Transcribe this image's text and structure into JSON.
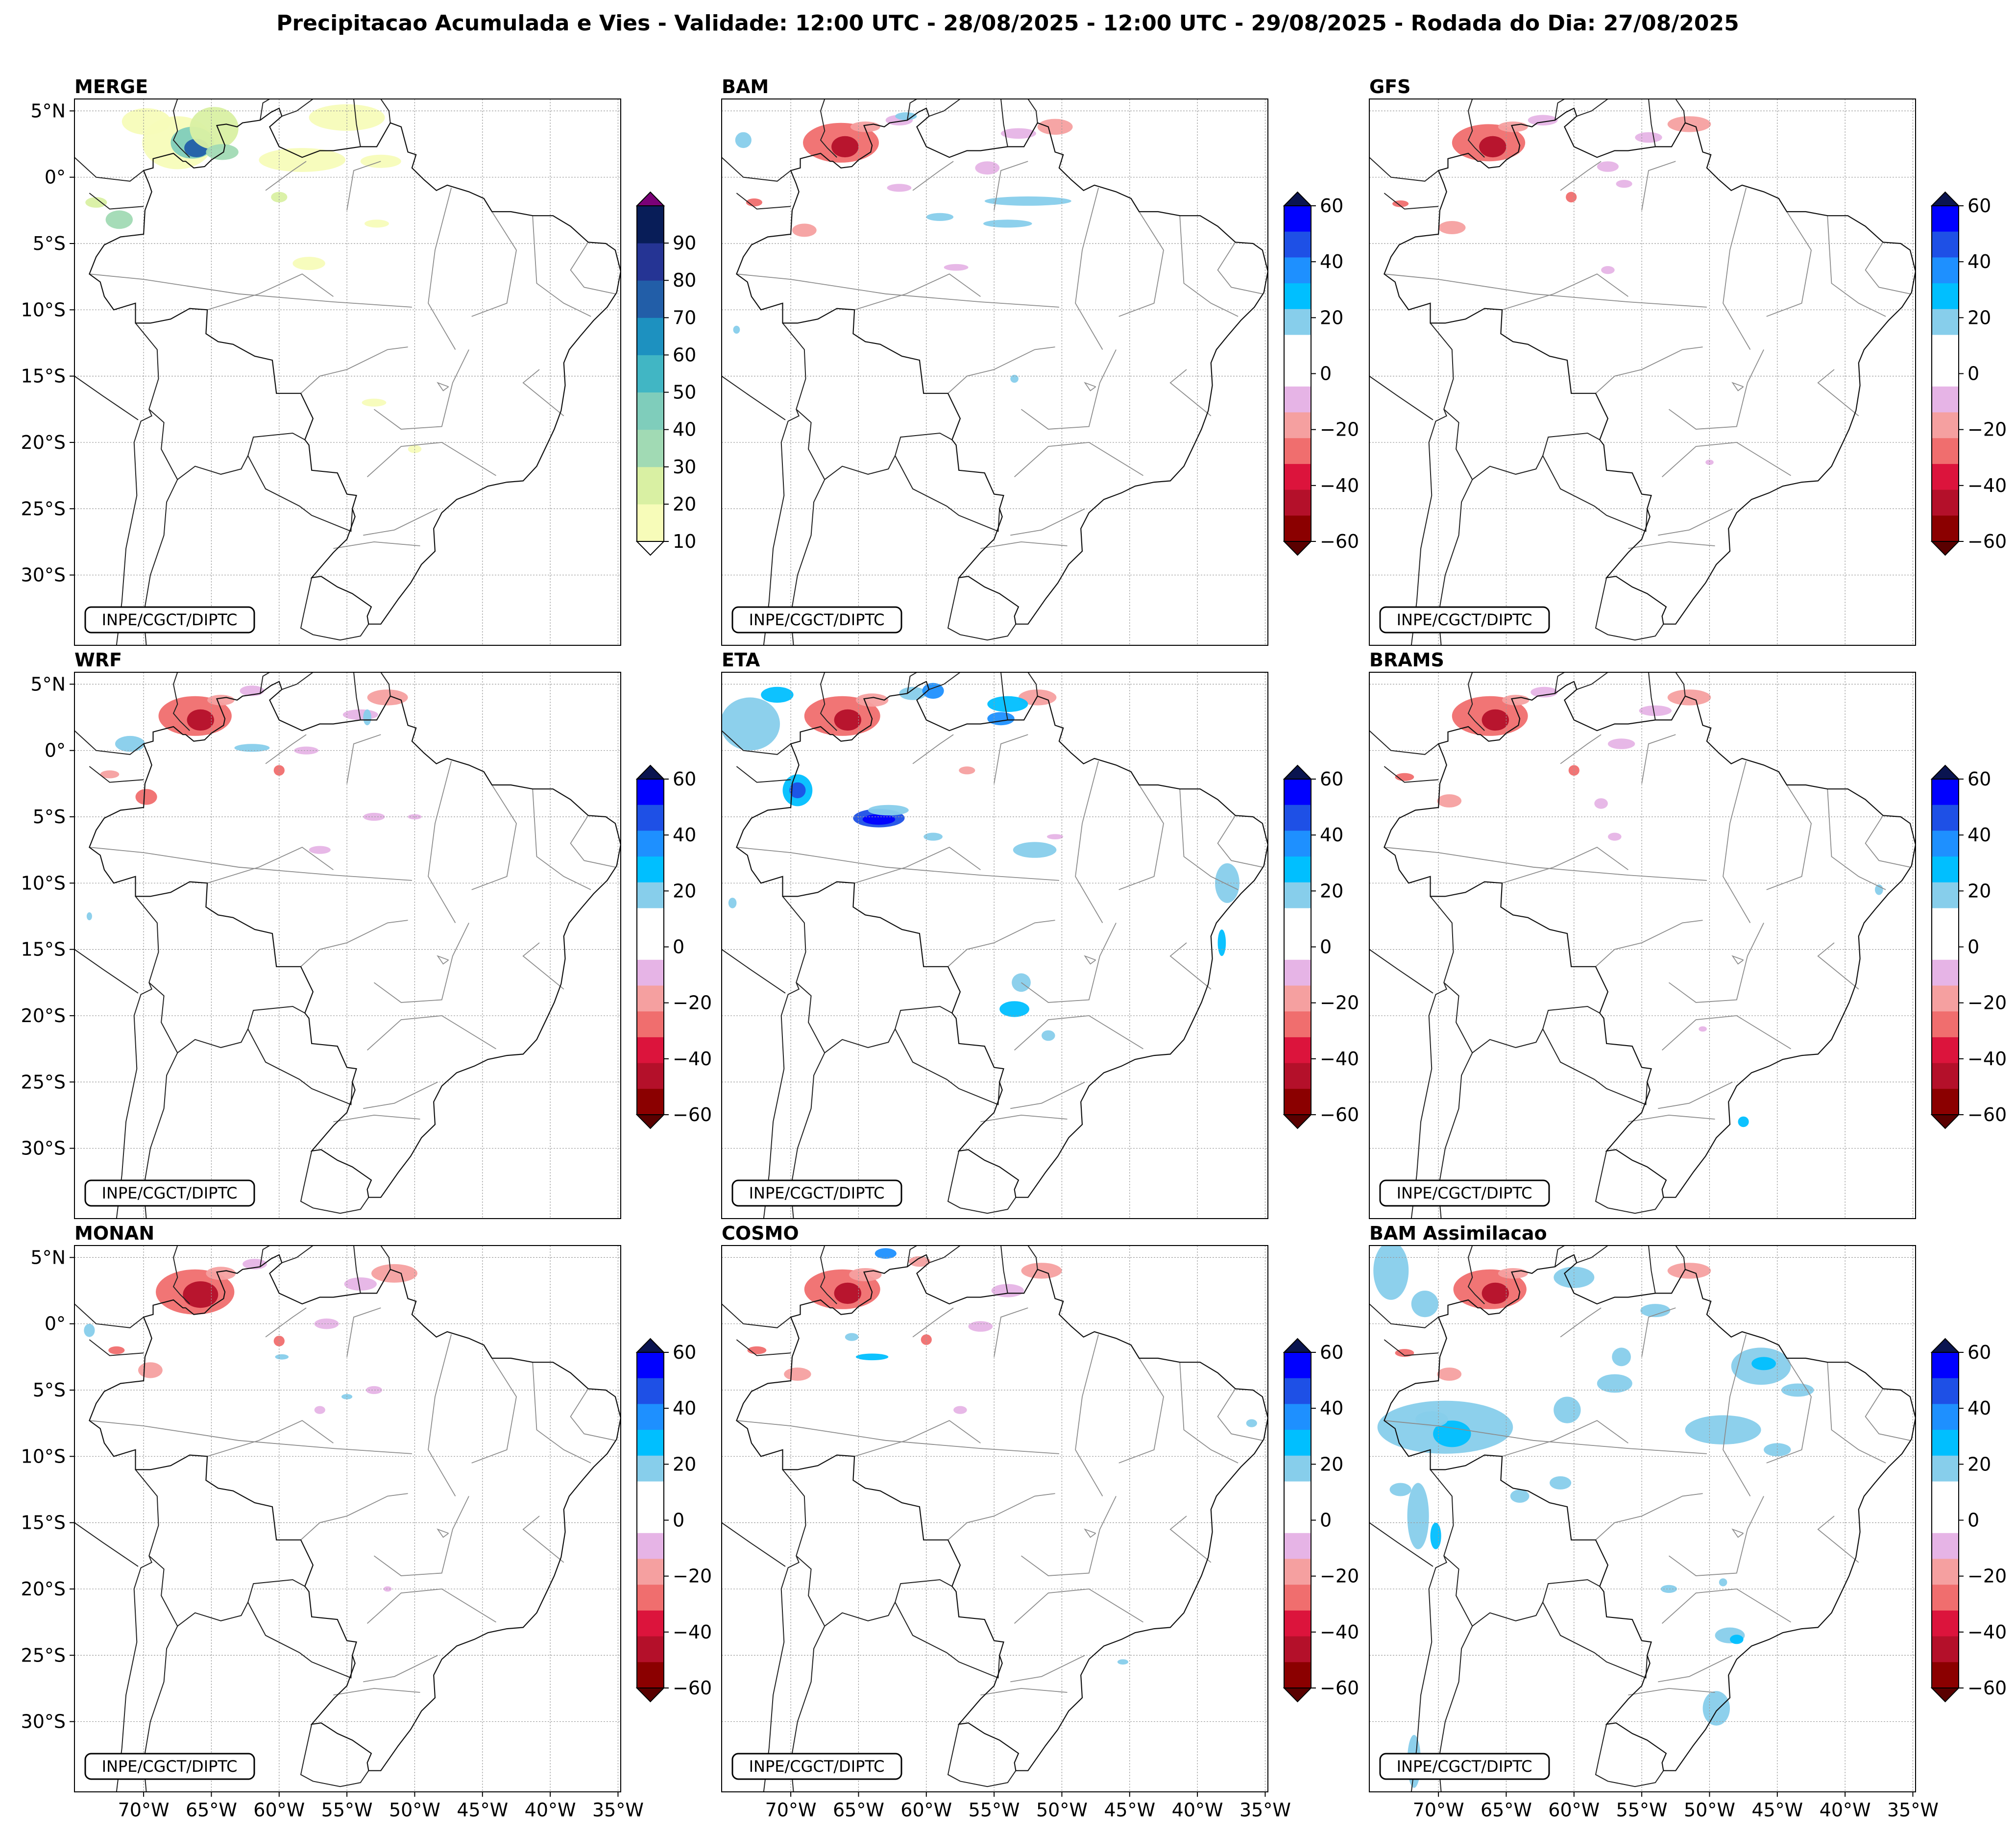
{
  "figure": {
    "title": "Precipitacao Acumulada e Vies - Validade: 12:00 UTC - 28/08/2025 - 12:00 UTC - 29/08/2025 - Rodada do Dia: 27/08/2025",
    "credit": "INPE/CGCT/DIPTC"
  },
  "axes": {
    "lat_labels": [
      "5°N",
      "0°",
      "5°S",
      "10°S",
      "15°S",
      "20°S",
      "25°S",
      "30°S"
    ],
    "lon_labels": [
      "70°W",
      "65°W",
      "60°W",
      "55°W",
      "50°W",
      "45°W",
      "40°W",
      "35°W"
    ]
  },
  "colorbars": {
    "merge": {
      "ticks": [
        "10",
        "20",
        "30",
        "40",
        "50",
        "60",
        "70",
        "80",
        "90"
      ],
      "colors": [
        "#f7fcb9",
        "#d9f0a3",
        "#a1dab4",
        "#7fcdbb",
        "#41b6c4",
        "#1d91c0",
        "#225ea8",
        "#253494",
        "#081d58"
      ],
      "under_color": "#ffffff",
      "over_color": "#7a0177"
    },
    "bias": {
      "ticks": [
        "60",
        "40",
        "20",
        "0",
        "−20",
        "−40",
        "−60"
      ],
      "colors_top_to_bottom": [
        "#0000ff",
        "#1e50e6",
        "#1e90ff",
        "#00bfff",
        "#87ceeb",
        "#ffffff",
        "#ffffff",
        "#e6b4e6",
        "#f5a0a0",
        "#f06e6e",
        "#dc143c",
        "#b4102a",
        "#8b0000"
      ],
      "over_color": "#0a1450",
      "under_color": "#5a0000"
    }
  },
  "panels": [
    {
      "id": "merge",
      "title": "MERGE",
      "kind": "precip"
    },
    {
      "id": "bam",
      "title": "BAM",
      "kind": "bias"
    },
    {
      "id": "gfs",
      "title": "GFS",
      "kind": "bias"
    },
    {
      "id": "wrf",
      "title": "WRF",
      "kind": "bias"
    },
    {
      "id": "eta",
      "title": "ETA",
      "kind": "bias"
    },
    {
      "id": "brams",
      "title": "BRAMS",
      "kind": "bias"
    },
    {
      "id": "monan",
      "title": "MONAN",
      "kind": "bias"
    },
    {
      "id": "cosmo",
      "title": "COSMO",
      "kind": "bias"
    },
    {
      "id": "bam_assim",
      "title": "BAM Assimilacao",
      "kind": "bias"
    }
  ]
}
